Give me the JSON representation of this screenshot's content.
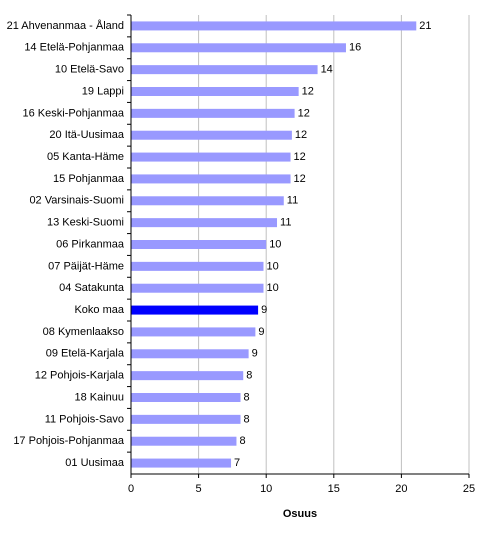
{
  "chart_data": {
    "type": "bar",
    "orientation": "horizontal",
    "categories": [
      "21 Ahvenanmaa - Åland",
      "14 Etelä-Pohjanmaa",
      "10 Etelä-Savo",
      "19 Lappi",
      "16 Keski-Pohjanmaa",
      "20 Itä-Uusimaa",
      "05 Kanta-Häme",
      "15 Pohjanmaa",
      "02 Varsinais-Suomi",
      "13 Keski-Suomi",
      "06 Pirkanmaa",
      "07 Päijät-Häme",
      "04 Satakunta",
      "Koko maa",
      "08 Kymenlaakso",
      "09 Etelä-Karjala",
      "12 Pohjois-Karjala",
      "18 Kainuu",
      "11 Pohjois-Savo",
      "17 Pohjois-Pohjanmaa",
      "01 Uusimaa"
    ],
    "values": [
      21.1,
      15.9,
      13.8,
      12.4,
      12.1,
      11.9,
      11.8,
      11.8,
      11.3,
      10.8,
      10.0,
      9.8,
      9.8,
      9.4,
      9.2,
      8.7,
      8.3,
      8.1,
      8.1,
      7.8,
      7.4
    ],
    "value_labels": [
      "21",
      "16",
      "14",
      "12",
      "12",
      "12",
      "12",
      "12",
      "11",
      "11",
      "10",
      "10",
      "10",
      "9",
      "9",
      "9",
      "8",
      "8",
      "8",
      "8",
      "7"
    ],
    "colors": [
      "#9999ff",
      "#9999ff",
      "#9999ff",
      "#9999ff",
      "#9999ff",
      "#9999ff",
      "#9999ff",
      "#9999ff",
      "#9999ff",
      "#9999ff",
      "#9999ff",
      "#9999ff",
      "#9999ff",
      "#0000ff",
      "#9999ff",
      "#9999ff",
      "#9999ff",
      "#9999ff",
      "#9999ff",
      "#9999ff",
      "#9999ff"
    ],
    "x_label": "Osuus",
    "xlim": [
      0,
      25
    ],
    "xticks": [
      0,
      5,
      10,
      15,
      20,
      25
    ],
    "grid": true
  }
}
